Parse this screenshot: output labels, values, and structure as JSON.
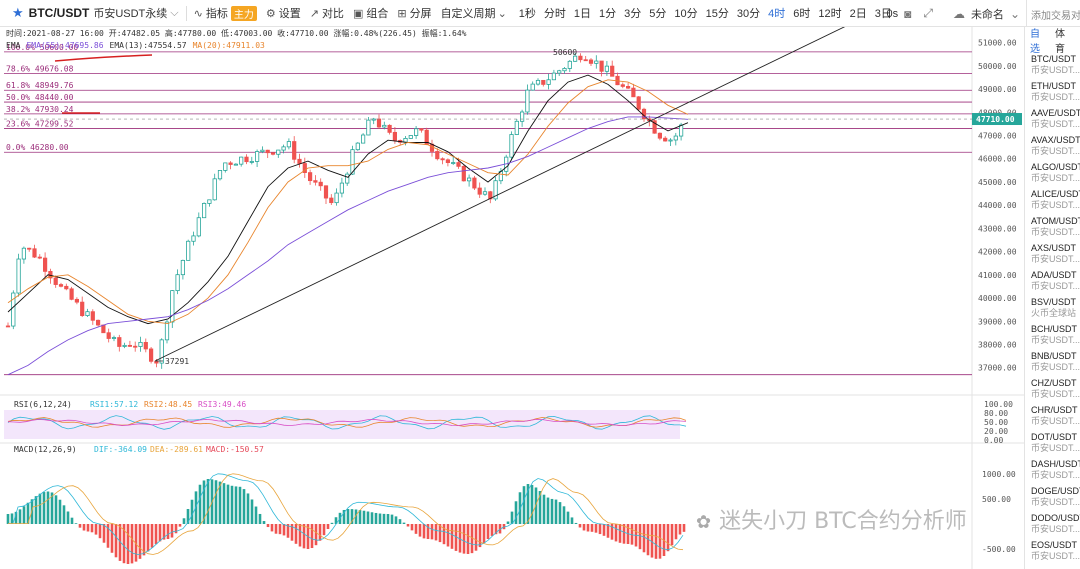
{
  "toolbar": {
    "symbol": "BTC/USDT",
    "symbol_sub": "币安USDT永续",
    "indicator_label": "指标",
    "main_badge": "主力",
    "settings_label": "设置",
    "compare_label": "对比",
    "combo_label": "组合",
    "split_label": "分屏",
    "custom_period_label": "自定义周期",
    "timeframes": [
      "1秒",
      "分时",
      "1日",
      "1分",
      "3分",
      "5分",
      "10分",
      "15分",
      "30分",
      "4时",
      "6时",
      "12时",
      "2日",
      "3日"
    ],
    "active_timeframe": "4时",
    "zero_s": "0s",
    "unnamed_label": "未命名",
    "search_placeholder": "添加交易对"
  },
  "info": {
    "ohlc_line": "时间:2021-08-27 16:00  开:47482.05  高:47780.00  低:47003.00  收:47710.00  涨幅:0.48%(226.45)  振幅:1.64%",
    "ma_labels": [
      {
        "text": "EMA",
        "color": "#333333"
      },
      {
        "text": "EMA(55):47695.86",
        "color": "#7b4fd8"
      },
      {
        "text": "EMA(13):47554.57",
        "color": "#333333"
      },
      {
        "text": "MA(20):47911.03",
        "color": "#e8852d"
      }
    ]
  },
  "fib": {
    "high_label": "50600",
    "low_label": "37291",
    "levels": [
      {
        "label": "100.0% 50600.00",
        "price": 50600
      },
      {
        "label": "78.6% 49676.08",
        "price": 49676.08
      },
      {
        "label": "61.8% 48949.76",
        "price": 48949.76
      },
      {
        "label": "50.0% 48440.00",
        "price": 48440
      },
      {
        "label": "38.2% 47930.24",
        "price": 47930.24
      },
      {
        "label": "23.6% 47299.52",
        "price": 47299.52
      },
      {
        "label": "0.0% 46280.00",
        "price": 46280
      }
    ],
    "extra_line_price": 36700
  },
  "price_axis": {
    "ticks": [
      51000,
      50000,
      49000,
      48000,
      47000,
      46000,
      45000,
      44000,
      43000,
      42000,
      41000,
      40000,
      39000,
      38000,
      37000
    ],
    "tick_labels": [
      "51000.00",
      "50000.00",
      "49000.00",
      "48000.00",
      "47000.00",
      "46000.00",
      "45000.00",
      "44000.00",
      "43000.00",
      "42000.00",
      "41000.00",
      "40000.00",
      "39000.00",
      "38000.00",
      "37000.00"
    ],
    "current_price": 47710,
    "current_label": "47710.00",
    "range": [
      36300,
      51500
    ]
  },
  "rsi": {
    "title": "RSI(6,12,24)",
    "values": [
      {
        "text": "RSI1:57.12",
        "color": "#2fb8d8"
      },
      {
        "text": "RSI2:48.45",
        "color": "#e8852d"
      },
      {
        "text": "RSI3:49.46",
        "color": "#d84fc6"
      }
    ],
    "axis_labels": [
      "100.00",
      "80.00",
      "50.00",
      "20.00",
      "0.00"
    ],
    "levels": [
      100,
      80,
      50,
      20,
      0
    ]
  },
  "macd": {
    "title": "MACD(12,26,9)",
    "values": [
      {
        "text": "DIF:-364.09",
        "color": "#2fb8d8"
      },
      {
        "text": "DEA:-289.61",
        "color": "#e8a53d"
      },
      {
        "text": "MACD:-150.57",
        "color": "#e64a5a"
      }
    ],
    "axis_labels": [
      "1000.00",
      "500.00",
      "-500.00"
    ],
    "levels": [
      1000,
      500,
      -500
    ]
  },
  "colors": {
    "up": "#26a69a",
    "down": "#ef5350",
    "fib_line": "#9b2d7a",
    "trendline": "#222222",
    "accent": "#2f6fd6",
    "ema55": "#7b4fd8",
    "ma20": "#e8852d",
    "ema13": "#111111"
  },
  "sidebar": {
    "tabs": [
      "自选",
      "体育"
    ],
    "items": [
      {
        "pair": "BTC/USDT",
        "exchange": "币安USDT..."
      },
      {
        "pair": "ETH/USDT",
        "exchange": "币安USDT..."
      },
      {
        "pair": "AAVE/USDT",
        "exchange": "币安USDT..."
      },
      {
        "pair": "AVAX/USDT",
        "exchange": "币安USDT..."
      },
      {
        "pair": "ALGO/USDT",
        "exchange": "币安USDT..."
      },
      {
        "pair": "ALICE/USDT",
        "exchange": "币安USDT..."
      },
      {
        "pair": "ATOM/USDT",
        "exchange": "币安USDT..."
      },
      {
        "pair": "AXS/USDT",
        "exchange": "币安USDT..."
      },
      {
        "pair": "ADA/USDT",
        "exchange": "币安USDT..."
      },
      {
        "pair": "BSV/USDT",
        "exchange": "火币全球站"
      },
      {
        "pair": "BCH/USDT",
        "exchange": "币安USDT..."
      },
      {
        "pair": "BNB/USDT",
        "exchange": "币安USDT..."
      },
      {
        "pair": "CHZ/USDT",
        "exchange": "币安USDT..."
      },
      {
        "pair": "CHR/USDT",
        "exchange": "币安USDT..."
      },
      {
        "pair": "DOT/USDT",
        "exchange": "币安USDT..."
      },
      {
        "pair": "DASH/USDT",
        "exchange": "币安USDT..."
      },
      {
        "pair": "DOGE/USDT",
        "exchange": "币安USDT..."
      },
      {
        "pair": "DODO/USDT",
        "exchange": "币安USDT..."
      },
      {
        "pair": "EOS/USDT",
        "exchange": "币安USDT..."
      }
    ]
  },
  "watermark": {
    "text": "迷失小刀 BTC合约分析师"
  },
  "chart_data": {
    "type": "line",
    "series": [
      {
        "name": "EMA(13)",
        "points": [
          [
            0,
            39400
          ],
          [
            20,
            40200
          ],
          [
            40,
            41000
          ],
          [
            60,
            40800
          ],
          [
            80,
            40200
          ],
          [
            100,
            39600
          ],
          [
            120,
            39200
          ],
          [
            140,
            38900
          ],
          [
            160,
            39100
          ],
          [
            180,
            39800
          ],
          [
            200,
            40700
          ],
          [
            220,
            41800
          ],
          [
            240,
            43300
          ],
          [
            260,
            44800
          ],
          [
            280,
            45600
          ],
          [
            300,
            45900
          ],
          [
            320,
            45500
          ],
          [
            340,
            45200
          ],
          [
            360,
            46200
          ],
          [
            380,
            46800
          ],
          [
            400,
            46700
          ],
          [
            420,
            46700
          ],
          [
            440,
            46300
          ],
          [
            460,
            45600
          ],
          [
            480,
            45000
          ],
          [
            500,
            45700
          ],
          [
            520,
            47200
          ],
          [
            540,
            48500
          ],
          [
            560,
            49300
          ],
          [
            580,
            49600
          ],
          [
            600,
            49200
          ],
          [
            620,
            48500
          ],
          [
            640,
            47700
          ],
          [
            660,
            47200
          ],
          [
            680,
            47550
          ]
        ]
      },
      {
        "name": "MA(20)",
        "points": [
          [
            0,
            39800
          ],
          [
            20,
            40400
          ],
          [
            40,
            40900
          ],
          [
            60,
            41000
          ],
          [
            80,
            40500
          ],
          [
            100,
            39900
          ],
          [
            120,
            39300
          ],
          [
            140,
            39000
          ],
          [
            160,
            38900
          ],
          [
            180,
            39300
          ],
          [
            200,
            40000
          ],
          [
            220,
            41000
          ],
          [
            240,
            42400
          ],
          [
            260,
            43900
          ],
          [
            280,
            45000
          ],
          [
            300,
            45600
          ],
          [
            320,
            45700
          ],
          [
            340,
            45700
          ],
          [
            360,
            45900
          ],
          [
            380,
            46400
          ],
          [
            400,
            46700
          ],
          [
            420,
            46600
          ],
          [
            440,
            46200
          ],
          [
            460,
            45800
          ],
          [
            480,
            45400
          ],
          [
            500,
            45300
          ],
          [
            520,
            46200
          ],
          [
            540,
            47400
          ],
          [
            560,
            48400
          ],
          [
            580,
            49100
          ],
          [
            600,
            49400
          ],
          [
            620,
            49300
          ],
          [
            640,
            48900
          ],
          [
            660,
            48300
          ],
          [
            680,
            47910
          ]
        ]
      },
      {
        "name": "EMA(55)",
        "points": [
          [
            0,
            36700
          ],
          [
            20,
            37100
          ],
          [
            40,
            37700
          ],
          [
            60,
            38200
          ],
          [
            80,
            38600
          ],
          [
            100,
            38900
          ],
          [
            120,
            39000
          ],
          [
            140,
            39100
          ],
          [
            160,
            39200
          ],
          [
            180,
            39500
          ],
          [
            200,
            39900
          ],
          [
            220,
            40400
          ],
          [
            240,
            41000
          ],
          [
            260,
            41600
          ],
          [
            280,
            42300
          ],
          [
            300,
            42800
          ],
          [
            320,
            43300
          ],
          [
            340,
            43800
          ],
          [
            360,
            44200
          ],
          [
            380,
            44600
          ],
          [
            400,
            44900
          ],
          [
            420,
            45200
          ],
          [
            440,
            45400
          ],
          [
            460,
            45500
          ],
          [
            480,
            45600
          ],
          [
            500,
            45800
          ],
          [
            520,
            46100
          ],
          [
            540,
            46500
          ],
          [
            560,
            46900
          ],
          [
            580,
            47300
          ],
          [
            600,
            47600
          ],
          [
            620,
            47800
          ],
          [
            640,
            47800
          ],
          [
            660,
            47750
          ],
          [
            680,
            47700
          ]
        ]
      }
    ],
    "candles_summary": "4h BTC/USDT candles, approx 130 bars, low 37291 to high 50600, last close 47710",
    "trendline": {
      "from": [
        155,
        37291
      ],
      "to": [
        855,
        51900
      ]
    }
  }
}
